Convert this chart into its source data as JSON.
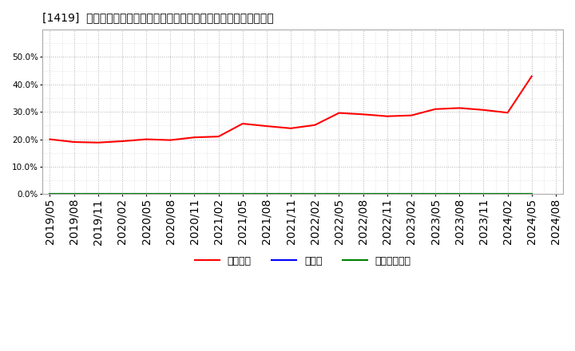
{
  "title": "[1419]  自己資本、のれん、繰延税金資産の総資産に対する比率の推移",
  "x_labels": [
    "2019/05",
    "2019/08",
    "2019/11",
    "2020/02",
    "2020/05",
    "2020/08",
    "2020/11",
    "2021/02",
    "2021/05",
    "2021/08",
    "2021/11",
    "2022/02",
    "2022/05",
    "2022/08",
    "2022/11",
    "2023/02",
    "2023/05",
    "2023/08",
    "2023/11",
    "2024/02",
    "2024/05",
    "2024/08"
  ],
  "equity_ratio": [
    0.2,
    0.19,
    0.188,
    0.193,
    0.2,
    0.197,
    0.207,
    0.21,
    0.257,
    0.248,
    0.24,
    0.252,
    0.296,
    0.291,
    0.284,
    0.287,
    0.31,
    0.314,
    0.307,
    0.297,
    0.43,
    null
  ],
  "goodwill_ratio": [
    0.0,
    0.0,
    0.0,
    0.0,
    0.0,
    0.0,
    0.0,
    0.0,
    0.0,
    0.0,
    0.0,
    0.0,
    0.0,
    0.0,
    0.0,
    0.0,
    0.0,
    0.0,
    0.0,
    0.0,
    0.0,
    null
  ],
  "deferred_tax_ratio": [
    0.0,
    0.0,
    0.0,
    0.0,
    0.0,
    0.0,
    0.0,
    0.0,
    0.0,
    0.0,
    0.0,
    0.0,
    0.0,
    0.0,
    0.0,
    0.0,
    0.0,
    0.0,
    0.0,
    0.0,
    0.0,
    null
  ],
  "equity_color": "#ff0000",
  "goodwill_color": "#0000ff",
  "deferred_tax_color": "#008000",
  "background_color": "#ffffff",
  "plot_bg_color": "#ffffff",
  "grid_color": "#aaaaaa",
  "ylim": [
    0.0,
    0.6
  ],
  "yticks": [
    0.0,
    0.1,
    0.2,
    0.3,
    0.4,
    0.5
  ],
  "legend_labels": [
    "自己資本",
    "のれん",
    "繰延税金資産"
  ],
  "title_fontsize": 11,
  "tick_fontsize": 7.5,
  "legend_fontsize": 9
}
